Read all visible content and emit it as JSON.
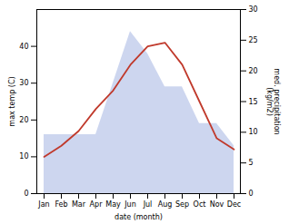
{
  "chart_data": {
    "type": "line",
    "categories": [
      "Jan",
      "Feb",
      "Mar",
      "Apr",
      "May",
      "Jun",
      "Jul",
      "Aug",
      "Sep",
      "Oct",
      "Nov",
      "Dec"
    ],
    "series": [
      {
        "type": "area",
        "color": "#b8c4e8",
        "values": [
          16,
          16,
          16,
          16,
          30,
          44,
          38,
          29,
          29,
          19,
          19,
          13
        ]
      },
      {
        "type": "line",
        "color": "#c0392b",
        "values": [
          10,
          13,
          17,
          23,
          28,
          35,
          40,
          41,
          35,
          25,
          15,
          12
        ]
      }
    ],
    "xlabel": "date (month)",
    "ylabel": "max temp (C)",
    "y2label": "med. precipitation\n(kg/m2)",
    "ylim": [
      0,
      50
    ],
    "yticks": [
      0,
      10,
      20,
      30,
      40
    ],
    "y2lim": [
      0,
      30
    ],
    "y2ticks": [
      0,
      5,
      10,
      15,
      20,
      25,
      30
    ],
    "grid": false
  }
}
